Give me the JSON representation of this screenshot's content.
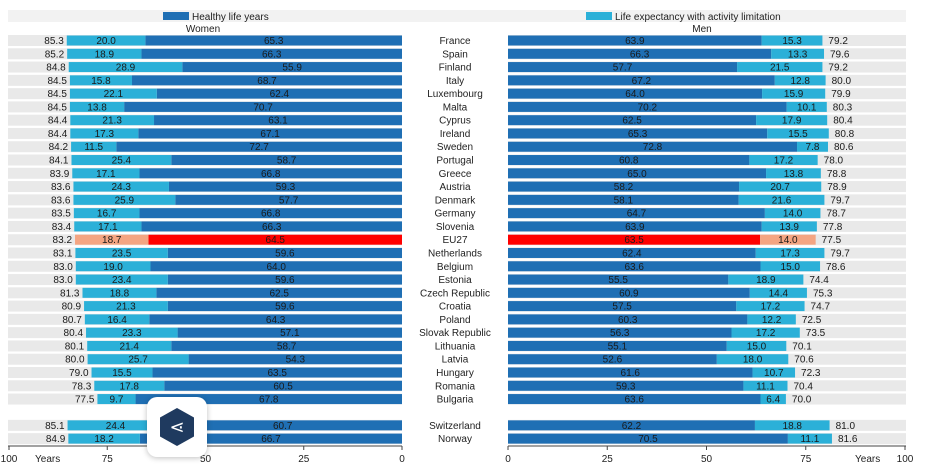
{
  "chart_data": {
    "type": "bar",
    "legend": {
      "healthy_label": "Healthy life years",
      "limitation_label": "Life expectancy with activity limitation"
    },
    "panels": {
      "women_title": "Women",
      "men_title": "Men"
    },
    "axis_unit": "Years",
    "xlim": [
      0,
      100
    ],
    "ticks": [
      100,
      75,
      50,
      25,
      0
    ],
    "men_ticks": [
      0,
      25,
      50,
      75,
      100
    ],
    "countries": [
      "France",
      "Spain",
      "Finland",
      "Italy",
      "Luxembourg",
      "Malta",
      "Cyprus",
      "Ireland",
      "Sweden",
      "Portugal",
      "Greece",
      "Austria",
      "Denmark",
      "Germany",
      "Slovenia",
      "EU27",
      "Netherlands",
      "Belgium",
      "Estonia",
      "Czech Republic",
      "Croatia",
      "Poland",
      "Slovak Republic",
      "Lithuania",
      "Latvia",
      "Hungary",
      "Romania",
      "Bulgaria",
      "Switzerland",
      "Norway"
    ],
    "highlight": "EU27",
    "gap_before": "Switzerland",
    "women": {
      "total": [
        85.3,
        85.2,
        84.8,
        84.5,
        84.5,
        84.5,
        84.4,
        84.4,
        84.2,
        84.1,
        83.9,
        83.6,
        83.6,
        83.5,
        83.4,
        83.2,
        83.1,
        83.0,
        83.0,
        81.3,
        80.9,
        80.7,
        80.4,
        80.1,
        80.0,
        79.0,
        78.3,
        77.5,
        85.1,
        84.9
      ],
      "limitation": [
        20.0,
        18.9,
        28.9,
        15.8,
        22.1,
        13.8,
        21.3,
        17.3,
        11.5,
        25.4,
        17.1,
        24.3,
        25.9,
        16.7,
        17.1,
        18.7,
        23.5,
        19.0,
        23.4,
        18.8,
        21.3,
        16.4,
        23.3,
        21.4,
        25.7,
        15.5,
        17.8,
        9.7,
        24.4,
        18.2
      ],
      "healthy": [
        65.3,
        66.3,
        55.9,
        68.7,
        62.4,
        70.7,
        63.1,
        67.1,
        72.7,
        58.7,
        66.8,
        59.3,
        57.7,
        66.8,
        66.3,
        64.5,
        59.6,
        64.0,
        59.6,
        62.5,
        59.6,
        64.3,
        57.1,
        58.7,
        54.3,
        63.5,
        60.5,
        67.8,
        60.7,
        66.7
      ]
    },
    "men": {
      "healthy": [
        63.9,
        66.3,
        57.7,
        67.2,
        64.0,
        70.2,
        62.5,
        65.3,
        72.8,
        60.8,
        65.0,
        58.2,
        58.1,
        64.7,
        63.9,
        63.5,
        62.4,
        63.6,
        55.5,
        60.9,
        57.5,
        60.3,
        56.3,
        55.1,
        52.6,
        61.6,
        59.3,
        63.6,
        62.2,
        70.5
      ],
      "limitation": [
        15.3,
        13.3,
        21.5,
        12.8,
        15.9,
        10.1,
        17.9,
        15.5,
        7.8,
        17.2,
        13.8,
        20.7,
        21.6,
        14.0,
        13.9,
        14.0,
        17.3,
        15.0,
        18.9,
        14.4,
        17.2,
        12.2,
        17.2,
        15.0,
        18.0,
        10.7,
        11.1,
        6.4,
        18.8,
        11.1
      ],
      "total": [
        79.2,
        79.6,
        79.2,
        80.0,
        79.9,
        80.3,
        80.4,
        80.8,
        80.6,
        78.0,
        78.8,
        78.9,
        79.7,
        78.7,
        77.8,
        77.5,
        79.7,
        78.6,
        74.4,
        75.3,
        74.7,
        72.5,
        73.5,
        70.1,
        70.6,
        72.3,
        70.4,
        70.0,
        81.0,
        81.6
      ]
    },
    "colors": {
      "healthy": "#1f6fb4",
      "limitation": "#2bb0d8",
      "eu_healthy": "#ff0000",
      "eu_limitation": "#f4a582",
      "row_bg": "#e9e9e9"
    }
  }
}
